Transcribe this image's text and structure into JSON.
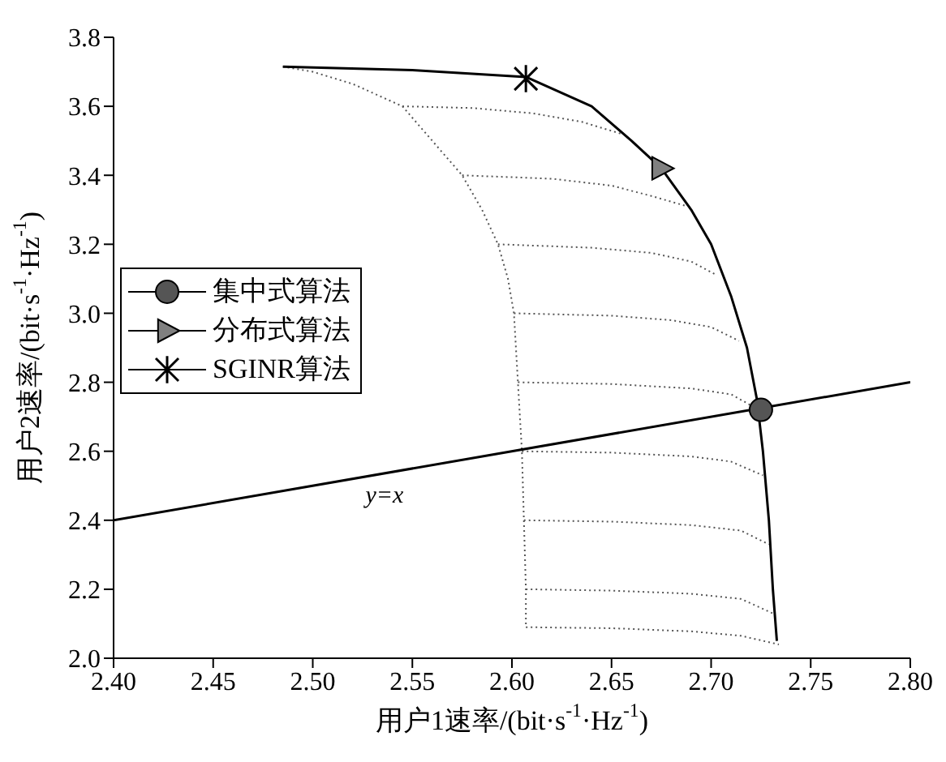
{
  "chart_data": {
    "type": "line",
    "xlabel": "用户1速率/(bit·s$^{-1}$·Hz$^{-1}$)",
    "ylabel": "用户2速率/(bit·s$^{-1}$·Hz$^{-1}$)",
    "xlim": [
      2.4,
      2.8
    ],
    "ylim": [
      2.0,
      3.8
    ],
    "xticks": [
      {
        "value": 2.4,
        "label": "2.40"
      },
      {
        "value": 2.45,
        "label": "2.45"
      },
      {
        "value": 2.5,
        "label": "2.50"
      },
      {
        "value": 2.55,
        "label": "2.55"
      },
      {
        "value": 2.6,
        "label": "2.60"
      },
      {
        "value": 2.65,
        "label": "2.65"
      },
      {
        "value": 2.7,
        "label": "2.70"
      },
      {
        "value": 2.75,
        "label": "2.75"
      },
      {
        "value": 2.8,
        "label": "2.80"
      }
    ],
    "yticks": [
      {
        "value": 2.0,
        "label": "2.0"
      },
      {
        "value": 2.2,
        "label": "2.2"
      },
      {
        "value": 2.4,
        "label": "2.4"
      },
      {
        "value": 2.6,
        "label": "2.6"
      },
      {
        "value": 2.8,
        "label": "2.8"
      },
      {
        "value": 3.0,
        "label": "3.0"
      },
      {
        "value": 3.2,
        "label": "3.2"
      },
      {
        "value": 3.4,
        "label": "3.4"
      },
      {
        "value": 3.6,
        "label": "3.6"
      },
      {
        "value": 3.8,
        "label": "3.8"
      }
    ],
    "legend": "left",
    "marker": "none",
    "annotations": [
      "y=x"
    ],
    "series": [
      {
        "color": "#555555",
        "line_style": "dotted",
        "x": [
          2.485,
          2.5,
          2.52,
          2.545,
          2.56,
          2.575,
          2.585,
          2.593,
          2.598,
          2.601,
          2.603,
          2.605,
          2.606,
          2.607,
          2.607
        ],
        "values": [
          3.715,
          3.7,
          3.665,
          3.6,
          3.5,
          3.4,
          3.3,
          3.2,
          3.1,
          3.0,
          2.8,
          2.6,
          2.4,
          2.2,
          2.09
        ]
      },
      {
        "color": "#555555",
        "line_style": "dotted",
        "x": [
          2.545,
          2.58,
          2.61,
          2.635,
          2.655
        ],
        "values": [
          3.6,
          3.595,
          3.58,
          3.555,
          3.52
        ]
      },
      {
        "color": "#555555",
        "line_style": "dotted",
        "x": [
          2.575,
          2.62,
          2.65,
          2.67,
          2.688
        ],
        "values": [
          3.4,
          3.39,
          3.37,
          3.34,
          3.31
        ]
      },
      {
        "color": "#555555",
        "line_style": "dotted",
        "x": [
          2.593,
          2.64,
          2.67,
          2.69,
          2.703
        ],
        "values": [
          3.2,
          3.19,
          3.175,
          3.15,
          3.11
        ]
      },
      {
        "color": "#555555",
        "line_style": "dotted",
        "x": [
          2.601,
          2.65,
          2.68,
          2.7,
          2.714
        ],
        "values": [
          3.0,
          2.993,
          2.98,
          2.96,
          2.92
        ]
      },
      {
        "color": "#555555",
        "line_style": "dotted",
        "x": [
          2.603,
          2.65,
          2.69,
          2.71,
          2.721
        ],
        "values": [
          2.8,
          2.795,
          2.782,
          2.765,
          2.73
        ]
      },
      {
        "color": "#555555",
        "line_style": "dotted",
        "x": [
          2.605,
          2.65,
          2.69,
          2.71,
          2.726
        ],
        "values": [
          2.6,
          2.596,
          2.585,
          2.57,
          2.53
        ]
      },
      {
        "color": "#555555",
        "line_style": "dotted",
        "x": [
          2.606,
          2.65,
          2.69,
          2.715,
          2.729
        ],
        "values": [
          2.4,
          2.396,
          2.386,
          2.37,
          2.33
        ]
      },
      {
        "color": "#555555",
        "line_style": "dotted",
        "x": [
          2.607,
          2.65,
          2.69,
          2.715,
          2.731
        ],
        "values": [
          2.2,
          2.196,
          2.187,
          2.172,
          2.13
        ]
      },
      {
        "color": "#555555",
        "line_style": "dotted",
        "x": [
          2.607,
          2.65,
          2.69,
          2.715,
          2.734
        ],
        "values": [
          2.09,
          2.087,
          2.078,
          2.065,
          2.04
        ]
      },
      {
        "color": "#000000",
        "line_style": "solid",
        "x": [
          2.485,
          2.55,
          2.607,
          2.64,
          2.66,
          2.675,
          2.69,
          2.7,
          2.71,
          2.718,
          2.723,
          2.726,
          2.729,
          2.731,
          2.733
        ],
        "values": [
          3.715,
          3.705,
          3.685,
          3.6,
          3.5,
          3.42,
          3.3,
          3.2,
          3.05,
          2.9,
          2.75,
          2.6,
          2.4,
          2.2,
          2.05
        ]
      },
      {
        "color": "#000000",
        "line_style": "solid",
        "x": [
          2.4,
          2.8
        ],
        "values": [
          2.4,
          2.8
        ]
      },
      {
        "type": "scatter",
        "name": "集中式算法",
        "color": "#555555",
        "marker": "circle",
        "x": [
          2.725
        ],
        "values": [
          2.72
        ]
      },
      {
        "type": "scatter",
        "name": "分布式算法",
        "color": "#808080",
        "marker": "triangle",
        "x": [
          2.675
        ],
        "values": [
          3.42
        ]
      },
      {
        "type": "scatter",
        "name": "SGINR算法",
        "color": "#000000",
        "marker": "cross",
        "x": [
          2.607
        ],
        "values": [
          3.68
        ]
      }
    ]
  }
}
